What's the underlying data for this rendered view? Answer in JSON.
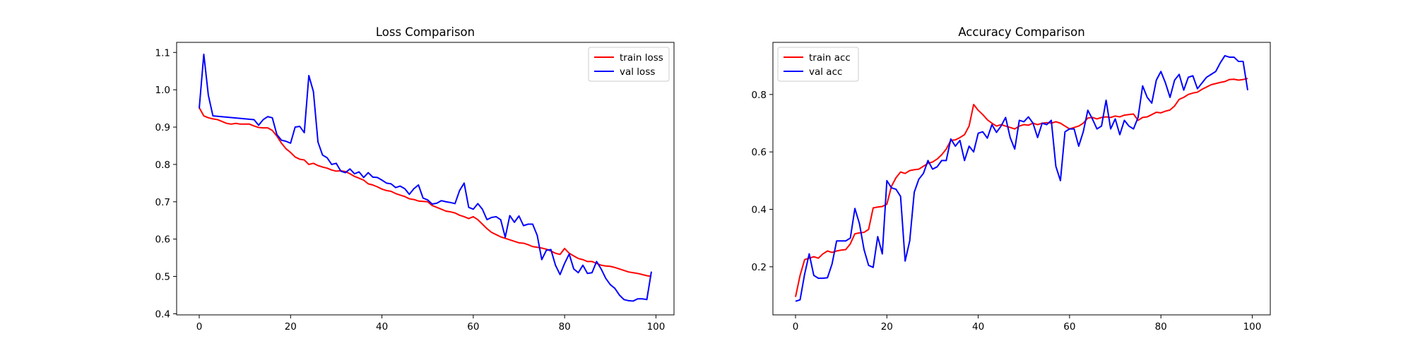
{
  "chart_data": [
    {
      "type": "line",
      "title": "Loss Comparison",
      "xlabel": "",
      "ylabel": "",
      "xlim": [
        -4.95,
        103.95
      ],
      "ylim": [
        0.397,
        1.127
      ],
      "xticks": [
        0,
        20,
        40,
        60,
        80,
        100
      ],
      "yticks": [
        0.4,
        0.5,
        0.6,
        0.7,
        0.8,
        0.9,
        1.0,
        1.1
      ],
      "xtick_labels": [
        "0",
        "20",
        "40",
        "60",
        "80",
        "100"
      ],
      "ytick_labels": [
        "0.4",
        "0.5",
        "0.6",
        "0.7",
        "0.8",
        "0.9",
        "1.0",
        "1.1"
      ],
      "grid": false,
      "legend_position": "top-right",
      "series": [
        {
          "name": "train loss",
          "color": "#ff0000",
          "x": [
            0,
            1,
            2,
            3,
            4,
            5,
            6,
            7,
            8,
            9,
            10,
            11,
            12,
            13,
            14,
            15,
            16,
            17,
            18,
            19,
            20,
            21,
            22,
            23,
            24,
            25,
            26,
            27,
            28,
            29,
            30,
            31,
            32,
            33,
            34,
            35,
            36,
            37,
            38,
            39,
            40,
            41,
            42,
            43,
            44,
            45,
            46,
            47,
            48,
            49,
            50,
            51,
            52,
            53,
            54,
            55,
            56,
            57,
            58,
            59,
            60,
            61,
            62,
            63,
            64,
            65,
            66,
            67,
            68,
            69,
            70,
            71,
            72,
            73,
            74,
            75,
            76,
            77,
            78,
            79,
            80,
            81,
            82,
            83,
            84,
            85,
            86,
            87,
            88,
            89,
            90,
            91,
            92,
            93,
            94,
            95,
            96,
            97,
            98,
            99
          ],
          "y": [
            0.952,
            0.93,
            0.925,
            0.922,
            0.92,
            0.915,
            0.91,
            0.908,
            0.91,
            0.908,
            0.908,
            0.908,
            0.903,
            0.899,
            0.898,
            0.898,
            0.891,
            0.876,
            0.857,
            0.842,
            0.832,
            0.82,
            0.814,
            0.812,
            0.8,
            0.803,
            0.797,
            0.793,
            0.79,
            0.785,
            0.782,
            0.783,
            0.781,
            0.775,
            0.768,
            0.763,
            0.758,
            0.748,
            0.745,
            0.74,
            0.734,
            0.73,
            0.728,
            0.722,
            0.718,
            0.714,
            0.708,
            0.706,
            0.702,
            0.701,
            0.7,
            0.69,
            0.685,
            0.68,
            0.675,
            0.673,
            0.67,
            0.664,
            0.66,
            0.655,
            0.66,
            0.652,
            0.64,
            0.628,
            0.618,
            0.612,
            0.606,
            0.602,
            0.598,
            0.594,
            0.59,
            0.589,
            0.585,
            0.58,
            0.578,
            0.576,
            0.573,
            0.568,
            0.562,
            0.559,
            0.575,
            0.562,
            0.555,
            0.548,
            0.545,
            0.54,
            0.54,
            0.535,
            0.53,
            0.528,
            0.527,
            0.524,
            0.52,
            0.516,
            0.512,
            0.51,
            0.508,
            0.505,
            0.502,
            0.5
          ]
        },
        {
          "name": "val loss",
          "color": "#0000ff",
          "x": [
            0,
            1,
            2,
            3,
            12,
            13,
            14,
            15,
            16,
            17,
            18,
            19,
            20,
            21,
            22,
            23,
            24,
            25,
            26,
            27,
            28,
            29,
            30,
            31,
            32,
            33,
            34,
            35,
            36,
            37,
            38,
            39,
            40,
            41,
            42,
            43,
            44,
            45,
            46,
            47,
            48,
            49,
            50,
            51,
            52,
            53,
            54,
            55,
            56,
            57,
            58,
            59,
            60,
            61,
            62,
            63,
            64,
            65,
            66,
            67,
            68,
            69,
            70,
            71,
            72,
            73,
            74,
            75,
            76,
            77,
            78,
            79,
            80,
            81,
            82,
            83,
            84,
            85,
            86,
            87,
            88,
            89,
            90,
            91,
            92,
            93,
            94,
            95,
            96,
            97,
            98,
            99
          ],
          "y": [
            0.95,
            1.095,
            0.985,
            0.93,
            0.92,
            0.905,
            0.92,
            0.928,
            0.925,
            0.88,
            0.865,
            0.862,
            0.857,
            0.9,
            0.902,
            0.885,
            1.038,
            0.995,
            0.86,
            0.825,
            0.818,
            0.8,
            0.803,
            0.782,
            0.778,
            0.788,
            0.775,
            0.78,
            0.765,
            0.778,
            0.766,
            0.765,
            0.758,
            0.75,
            0.748,
            0.738,
            0.742,
            0.735,
            0.72,
            0.735,
            0.745,
            0.71,
            0.705,
            0.694,
            0.696,
            0.703,
            0.7,
            0.698,
            0.695,
            0.73,
            0.75,
            0.685,
            0.68,
            0.695,
            0.68,
            0.652,
            0.658,
            0.66,
            0.652,
            0.605,
            0.663,
            0.645,
            0.662,
            0.636,
            0.64,
            0.64,
            0.61,
            0.545,
            0.57,
            0.572,
            0.53,
            0.505,
            0.535,
            0.56,
            0.52,
            0.51,
            0.53,
            0.508,
            0.51,
            0.54,
            0.52,
            0.495,
            0.478,
            0.468,
            0.45,
            0.438,
            0.435,
            0.434,
            0.44,
            0.44,
            0.438,
            0.513
          ]
        }
      ]
    },
    {
      "type": "line",
      "title": "Accuracy Comparison",
      "xlabel": "",
      "ylabel": "",
      "xlim": [
        -4.95,
        103.95
      ],
      "ylim": [
        0.0325,
        0.9815
      ],
      "xticks": [
        0,
        20,
        40,
        60,
        80,
        100
      ],
      "yticks": [
        0.2,
        0.4,
        0.6,
        0.8
      ],
      "xtick_labels": [
        "0",
        "20",
        "40",
        "60",
        "80",
        "100"
      ],
      "ytick_labels": [
        "0.2",
        "0.4",
        "0.6",
        "0.8"
      ],
      "grid": false,
      "legend_position": "top-left",
      "series": [
        {
          "name": "train acc",
          "color": "#ff0000",
          "x": [
            0,
            1,
            2,
            3,
            4,
            5,
            6,
            7,
            8,
            9,
            10,
            11,
            12,
            13,
            14,
            15,
            16,
            17,
            18,
            19,
            20,
            21,
            22,
            23,
            24,
            25,
            26,
            27,
            28,
            29,
            30,
            31,
            32,
            33,
            34,
            35,
            36,
            37,
            38,
            39,
            40,
            41,
            42,
            43,
            44,
            45,
            46,
            47,
            48,
            49,
            50,
            51,
            52,
            53,
            54,
            55,
            56,
            57,
            58,
            59,
            60,
            61,
            62,
            63,
            64,
            65,
            66,
            67,
            68,
            69,
            70,
            71,
            72,
            73,
            74,
            75,
            76,
            77,
            78,
            79,
            80,
            81,
            82,
            83,
            84,
            85,
            86,
            87,
            88,
            89,
            90,
            91,
            92,
            93,
            94,
            95,
            96,
            97,
            98,
            99
          ],
          "y": [
            0.095,
            0.17,
            0.225,
            0.23,
            0.235,
            0.23,
            0.245,
            0.255,
            0.25,
            0.255,
            0.258,
            0.26,
            0.28,
            0.315,
            0.318,
            0.32,
            0.33,
            0.405,
            0.408,
            0.41,
            0.418,
            0.48,
            0.51,
            0.53,
            0.525,
            0.535,
            0.538,
            0.54,
            0.55,
            0.56,
            0.565,
            0.575,
            0.59,
            0.61,
            0.64,
            0.642,
            0.65,
            0.66,
            0.69,
            0.765,
            0.745,
            0.73,
            0.712,
            0.7,
            0.69,
            0.695,
            0.69,
            0.685,
            0.68,
            0.69,
            0.695,
            0.693,
            0.7,
            0.695,
            0.7,
            0.702,
            0.7,
            0.705,
            0.7,
            0.69,
            0.68,
            0.685,
            0.69,
            0.7,
            0.718,
            0.72,
            0.715,
            0.72,
            0.722,
            0.72,
            0.725,
            0.722,
            0.728,
            0.73,
            0.732,
            0.71,
            0.72,
            0.722,
            0.73,
            0.738,
            0.736,
            0.742,
            0.746,
            0.76,
            0.783,
            0.79,
            0.8,
            0.805,
            0.808,
            0.818,
            0.826,
            0.834,
            0.838,
            0.842,
            0.845,
            0.852,
            0.853,
            0.85,
            0.852,
            0.856
          ]
        },
        {
          "name": "val acc",
          "color": "#0000ff",
          "x": [
            0,
            1,
            2,
            3,
            4,
            5,
            6,
            7,
            8,
            9,
            10,
            11,
            12,
            13,
            14,
            15,
            16,
            17,
            18,
            19,
            20,
            21,
            22,
            23,
            24,
            25,
            26,
            27,
            28,
            29,
            30,
            31,
            32,
            33,
            34,
            35,
            36,
            37,
            38,
            39,
            40,
            41,
            42,
            43,
            44,
            45,
            46,
            47,
            48,
            49,
            50,
            51,
            52,
            53,
            54,
            55,
            56,
            57,
            58,
            59,
            60,
            61,
            62,
            63,
            64,
            65,
            66,
            67,
            68,
            69,
            70,
            71,
            72,
            73,
            74,
            75,
            76,
            77,
            78,
            79,
            80,
            81,
            82,
            83,
            84,
            85,
            86,
            87,
            88,
            89,
            90,
            91,
            92,
            93,
            94,
            95,
            96,
            97,
            98,
            99
          ],
          "y": [
            0.08,
            0.085,
            0.175,
            0.245,
            0.17,
            0.16,
            0.16,
            0.162,
            0.21,
            0.29,
            0.29,
            0.29,
            0.3,
            0.403,
            0.35,
            0.26,
            0.205,
            0.198,
            0.305,
            0.245,
            0.5,
            0.475,
            0.47,
            0.445,
            0.22,
            0.29,
            0.46,
            0.505,
            0.525,
            0.57,
            0.54,
            0.548,
            0.57,
            0.57,
            0.645,
            0.62,
            0.64,
            0.57,
            0.62,
            0.6,
            0.665,
            0.67,
            0.648,
            0.695,
            0.668,
            0.69,
            0.72,
            0.65,
            0.61,
            0.71,
            0.705,
            0.722,
            0.7,
            0.65,
            0.7,
            0.695,
            0.71,
            0.55,
            0.5,
            0.67,
            0.68,
            0.68,
            0.62,
            0.67,
            0.745,
            0.715,
            0.68,
            0.69,
            0.78,
            0.68,
            0.715,
            0.66,
            0.71,
            0.69,
            0.68,
            0.72,
            0.83,
            0.79,
            0.77,
            0.85,
            0.88,
            0.84,
            0.79,
            0.85,
            0.87,
            0.815,
            0.86,
            0.865,
            0.82,
            0.84,
            0.86,
            0.87,
            0.88,
            0.91,
            0.935,
            0.93,
            0.93,
            0.915,
            0.915,
            0.815
          ]
        }
      ]
    }
  ]
}
